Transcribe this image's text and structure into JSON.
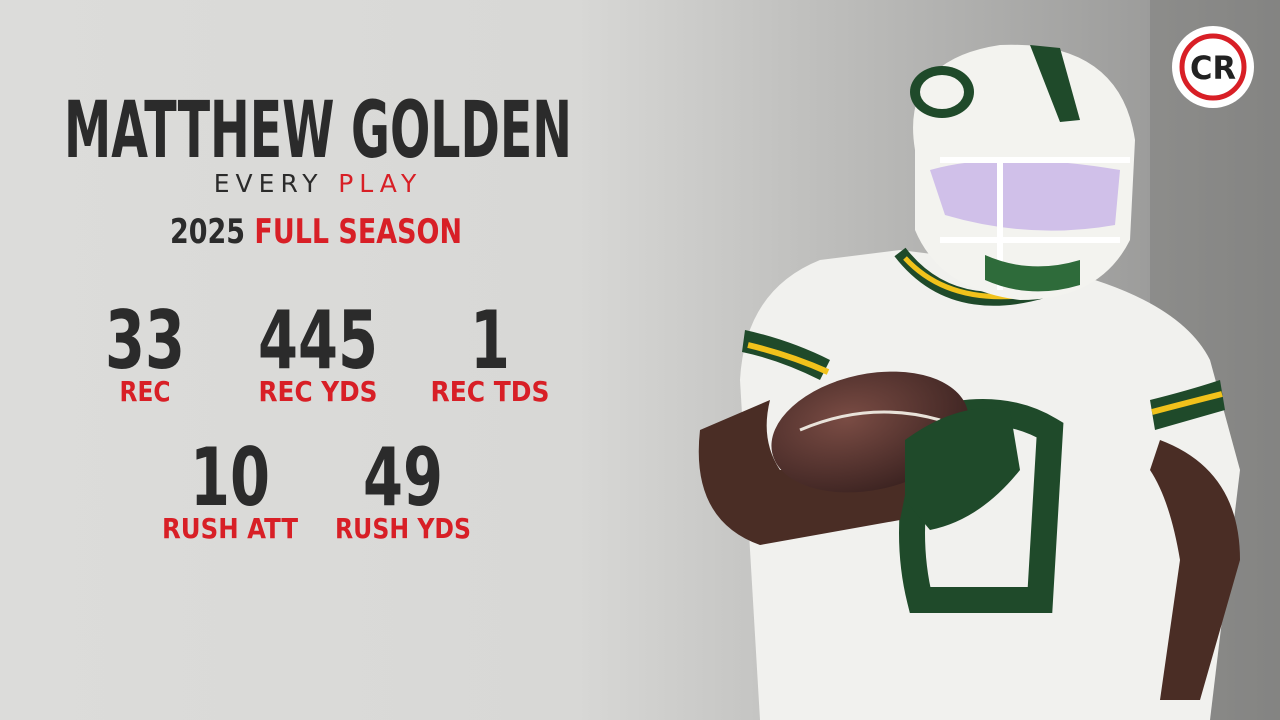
{
  "header": {
    "title": "MATTHEW GOLDEN",
    "subtitle": {
      "first": "EVERY",
      "second": "PLAY"
    },
    "season": {
      "year": "2025",
      "label": "FULL SEASON"
    }
  },
  "stats": [
    {
      "value": 33,
      "label": "REC"
    },
    {
      "value": 445,
      "label": "REC YDS"
    },
    {
      "value": 1,
      "label": "REC TDS"
    },
    {
      "value": 10,
      "label": "RUSH ATT"
    },
    {
      "value": 49,
      "label": "RUSH YDS"
    }
  ],
  "logo": "CR"
}
